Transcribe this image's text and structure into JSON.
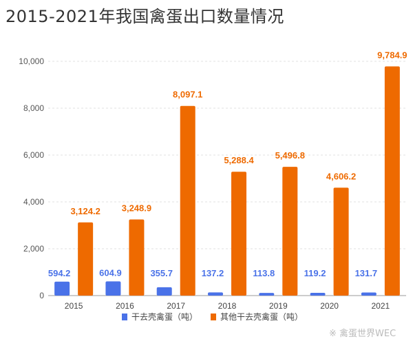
{
  "colors": {
    "series1": "#4a72e8",
    "series2": "#ee6a00",
    "grid": "#e0e0e0",
    "axis": "#999999"
  },
  "watermark": "※ 禽蛋世界WEC",
  "chart_data": {
    "type": "bar",
    "title": "2015-2021年我国禽蛋出口数量情况",
    "categories": [
      "2015",
      "2016",
      "2017",
      "2018",
      "2019",
      "2020",
      "2021"
    ],
    "series": [
      {
        "name": "干去壳禽蛋（吨）",
        "color": "#4a72e8",
        "values": [
          594.2,
          604.9,
          355.7,
          137.2,
          113.8,
          119.2,
          131.7
        ],
        "labels": [
          "594.2",
          "604.9",
          "355.7",
          "137.2",
          "113.8",
          "119.2",
          "131.7"
        ]
      },
      {
        "name": "其他干去壳禽蛋（吨）",
        "color": "#ee6a00",
        "values": [
          3124.2,
          3248.9,
          8097.1,
          5288.4,
          5496.8,
          4606.2,
          9784.9
        ],
        "labels": [
          "3,124.2",
          "3,248.9",
          "8,097.1",
          "5,288.4",
          "5,496.8",
          "4,606.2",
          "9,784.9"
        ]
      }
    ],
    "yticks": [
      0,
      2000,
      4000,
      6000,
      8000,
      10000
    ],
    "ytick_labels": [
      "0",
      "2,000",
      "4,000",
      "6,000",
      "8,000",
      "10,000"
    ],
    "ylim": [
      0,
      10000
    ],
    "grid": true,
    "legend": "bottom-center"
  }
}
